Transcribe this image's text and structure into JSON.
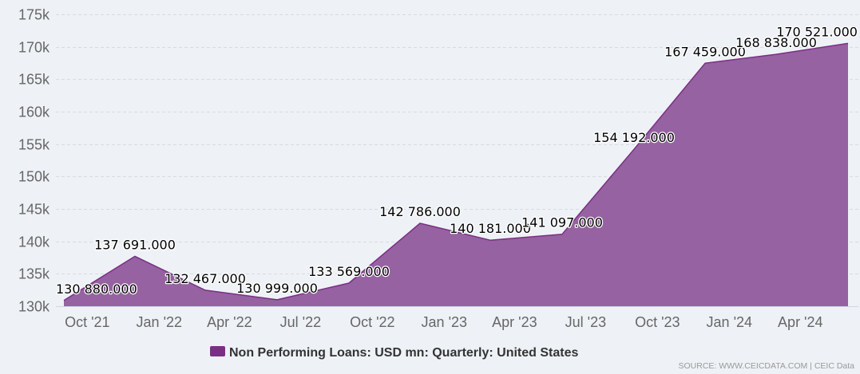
{
  "page": {
    "background": "#eef2f6"
  },
  "chart_data": {
    "type": "area",
    "x": [
      "2021-09",
      "2021-12",
      "2022-03",
      "2022-06",
      "2022-09",
      "2022-12",
      "2023-03",
      "2023-06",
      "2023-09",
      "2023-12",
      "2024-03",
      "2024-06"
    ],
    "series": [
      {
        "name": "Non Performing Loans: USD mn: Quarterly: United States",
        "color": "#7a2f85",
        "area_color": "#9662a1",
        "values": [
          130880,
          137691,
          132467,
          130999,
          133569,
          142786,
          140181,
          141097,
          154192,
          167459,
          168838,
          170521
        ],
        "data_labels": [
          "130 880.000",
          "137 691.000",
          "132 467.000",
          "130 999.000",
          "133 569.000",
          "142 786.000",
          "140 181.000",
          "141 097.000",
          "154 192.000",
          "167 459.000",
          "168 838.000",
          "170 521.000"
        ]
      }
    ],
    "x_ticks": [
      "2021-10",
      "2022-01",
      "2022-04",
      "2022-07",
      "2022-10",
      "2023-01",
      "2023-04",
      "2023-07",
      "2023-10",
      "2024-01",
      "2024-04"
    ],
    "x_tick_labels": [
      "Oct '21",
      "Jan '22",
      "Apr '22",
      "Jul '22",
      "Oct '22",
      "Jan '23",
      "Apr '23",
      "Jul '23",
      "Oct '23",
      "Jan '24",
      "Apr '24"
    ],
    "y_ticks": [
      130000,
      135000,
      140000,
      145000,
      150000,
      155000,
      160000,
      165000,
      170000,
      175000
    ],
    "y_tick_labels": [
      "130k",
      "135k",
      "140k",
      "145k",
      "150k",
      "155k",
      "160k",
      "165k",
      "170k",
      "175k"
    ],
    "ylim": [
      130000,
      175000
    ],
    "grid": true,
    "grid_color": "#d6dbe2",
    "legend": {
      "position": "bottom-center"
    }
  },
  "credits": {
    "text": "SOURCE: WWW.CEICDATA.COM | CEIC Data"
  }
}
